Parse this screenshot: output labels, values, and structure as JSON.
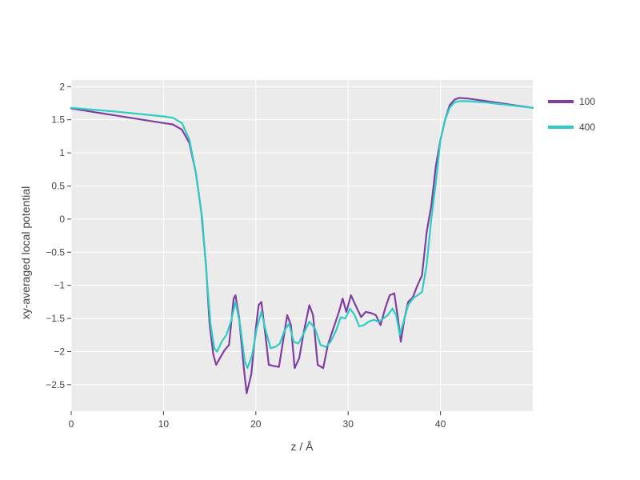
{
  "chart_data": {
    "type": "line",
    "title": "",
    "xlabel": "z / Å",
    "ylabel": "xy-averaged local potential",
    "xlim": [
      0,
      50
    ],
    "ylim": [
      -2.9,
      2.1
    ],
    "x_ticks": [
      0,
      10,
      20,
      30,
      40
    ],
    "y_ticks": [
      -2.5,
      -2,
      -1.5,
      -1,
      -0.5,
      0,
      0.5,
      1,
      1.5,
      2
    ],
    "x_tick_labels": [
      "0",
      "10",
      "20",
      "30",
      "40"
    ],
    "y_tick_labels": [
      "−2.5",
      "−2",
      "−1.5",
      "−1",
      "−0.5",
      "0",
      "0.5",
      "1",
      "1.5",
      "2"
    ],
    "grid": true,
    "background": "#ebebeb",
    "legend_position": "top-right",
    "series": [
      {
        "name": "100",
        "color": "#7f3fa0",
        "points": [
          [
            0,
            1.67
          ],
          [
            5,
            1.56
          ],
          [
            10,
            1.45
          ],
          [
            11,
            1.43
          ],
          [
            12,
            1.35
          ],
          [
            12.8,
            1.15
          ],
          [
            13.5,
            0.7
          ],
          [
            14.1,
            0.1
          ],
          [
            14.6,
            -0.7
          ],
          [
            15,
            -1.6
          ],
          [
            15.4,
            -2.05
          ],
          [
            15.7,
            -2.2
          ],
          [
            16.1,
            -2.1
          ],
          [
            16.6,
            -1.98
          ],
          [
            17.1,
            -1.9
          ],
          [
            17.6,
            -1.2
          ],
          [
            17.8,
            -1.15
          ],
          [
            18.2,
            -1.5
          ],
          [
            18.7,
            -2.25
          ],
          [
            19.0,
            -2.63
          ],
          [
            19.5,
            -2.35
          ],
          [
            20.0,
            -1.65
          ],
          [
            20.3,
            -1.3
          ],
          [
            20.6,
            -1.25
          ],
          [
            21.0,
            -1.7
          ],
          [
            21.4,
            -2.2
          ],
          [
            22.0,
            -2.22
          ],
          [
            22.5,
            -2.23
          ],
          [
            23.0,
            -1.8
          ],
          [
            23.4,
            -1.45
          ],
          [
            23.8,
            -1.6
          ],
          [
            24.2,
            -2.25
          ],
          [
            24.7,
            -2.1
          ],
          [
            25.2,
            -1.7
          ],
          [
            25.8,
            -1.3
          ],
          [
            26.2,
            -1.45
          ],
          [
            26.7,
            -2.2
          ],
          [
            27.3,
            -2.25
          ],
          [
            27.8,
            -1.9
          ],
          [
            28.4,
            -1.65
          ],
          [
            29.0,
            -1.4
          ],
          [
            29.4,
            -1.2
          ],
          [
            29.8,
            -1.4
          ],
          [
            30.3,
            -1.15
          ],
          [
            30.8,
            -1.3
          ],
          [
            31.4,
            -1.48
          ],
          [
            31.9,
            -1.4
          ],
          [
            32.5,
            -1.42
          ],
          [
            33.0,
            -1.45
          ],
          [
            33.5,
            -1.6
          ],
          [
            34.0,
            -1.35
          ],
          [
            34.5,
            -1.15
          ],
          [
            35.0,
            -1.12
          ],
          [
            35.4,
            -1.5
          ],
          [
            35.7,
            -1.85
          ],
          [
            36.1,
            -1.5
          ],
          [
            36.5,
            -1.25
          ],
          [
            37.0,
            -1.18
          ],
          [
            37.5,
            -1.0
          ],
          [
            38.0,
            -0.85
          ],
          [
            38.5,
            -0.2
          ],
          [
            39.0,
            0.2
          ],
          [
            39.5,
            0.8
          ],
          [
            40.0,
            1.2
          ],
          [
            40.5,
            1.5
          ],
          [
            41.0,
            1.72
          ],
          [
            41.5,
            1.8
          ],
          [
            42.0,
            1.83
          ],
          [
            43.0,
            1.82
          ],
          [
            45.0,
            1.78
          ],
          [
            50.0,
            1.68
          ]
        ]
      },
      {
        "name": "400",
        "color": "#2dcdc3",
        "points": [
          [
            0,
            1.68
          ],
          [
            5,
            1.62
          ],
          [
            10,
            1.55
          ],
          [
            11,
            1.53
          ],
          [
            12,
            1.45
          ],
          [
            12.8,
            1.2
          ],
          [
            13.5,
            0.7
          ],
          [
            14.2,
            0.0
          ],
          [
            14.7,
            -0.9
          ],
          [
            15.1,
            -1.6
          ],
          [
            15.5,
            -1.95
          ],
          [
            15.8,
            -2.0
          ],
          [
            16.3,
            -1.85
          ],
          [
            16.8,
            -1.75
          ],
          [
            17.3,
            -1.55
          ],
          [
            17.8,
            -1.25
          ],
          [
            18.3,
            -1.6
          ],
          [
            18.8,
            -2.15
          ],
          [
            19.1,
            -2.25
          ],
          [
            19.6,
            -2.05
          ],
          [
            20.1,
            -1.65
          ],
          [
            20.6,
            -1.4
          ],
          [
            21.1,
            -1.7
          ],
          [
            21.6,
            -1.95
          ],
          [
            22.1,
            -1.93
          ],
          [
            22.6,
            -1.88
          ],
          [
            23.1,
            -1.68
          ],
          [
            23.6,
            -1.58
          ],
          [
            24.1,
            -1.85
          ],
          [
            24.6,
            -1.88
          ],
          [
            25.1,
            -1.75
          ],
          [
            25.8,
            -1.55
          ],
          [
            26.4,
            -1.65
          ],
          [
            27.0,
            -1.9
          ],
          [
            27.6,
            -1.93
          ],
          [
            28.1,
            -1.85
          ],
          [
            28.7,
            -1.68
          ],
          [
            29.2,
            -1.48
          ],
          [
            29.7,
            -1.5
          ],
          [
            30.2,
            -1.35
          ],
          [
            30.7,
            -1.45
          ],
          [
            31.2,
            -1.62
          ],
          [
            31.7,
            -1.6
          ],
          [
            32.2,
            -1.55
          ],
          [
            32.8,
            -1.52
          ],
          [
            33.3,
            -1.55
          ],
          [
            33.8,
            -1.5
          ],
          [
            34.3,
            -1.45
          ],
          [
            34.8,
            -1.35
          ],
          [
            35.2,
            -1.45
          ],
          [
            35.6,
            -1.75
          ],
          [
            36.0,
            -1.55
          ],
          [
            36.5,
            -1.3
          ],
          [
            37.0,
            -1.2
          ],
          [
            37.5,
            -1.15
          ],
          [
            38.0,
            -1.1
          ],
          [
            38.5,
            -0.7
          ],
          [
            39.0,
            0.0
          ],
          [
            39.5,
            0.55
          ],
          [
            40.0,
            1.2
          ],
          [
            40.5,
            1.5
          ],
          [
            41.0,
            1.68
          ],
          [
            41.5,
            1.76
          ],
          [
            42.0,
            1.78
          ],
          [
            43.0,
            1.78
          ],
          [
            45.0,
            1.76
          ],
          [
            50.0,
            1.68
          ]
        ]
      }
    ]
  }
}
